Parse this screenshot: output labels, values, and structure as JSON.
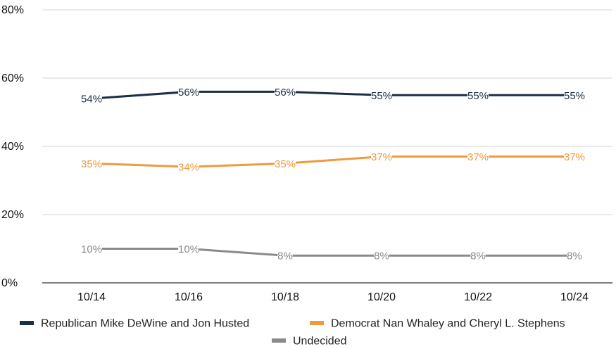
{
  "chart_data": {
    "type": "line",
    "categories": [
      "10/14",
      "10/16",
      "10/18",
      "10/20",
      "10/22",
      "10/24"
    ],
    "ylim": [
      0,
      80
    ],
    "yticks": [
      0,
      20,
      40,
      60,
      80
    ],
    "ytick_labels": [
      "0%",
      "20%",
      "40%",
      "60%",
      "80%"
    ],
    "grid": true,
    "legend": "bottom",
    "series": [
      {
        "name": "Republican Mike DeWine and Jon Husted",
        "color": "#1b2f46",
        "values": [
          54,
          56,
          56,
          55,
          55,
          55
        ],
        "labels": [
          "54%",
          "56%",
          "56%",
          "55%",
          "55%",
          "55%"
        ]
      },
      {
        "name": "Democrat Nan Whaley and Cheryl L. Stephens",
        "color": "#ef9a3c",
        "values": [
          35,
          34,
          35,
          37,
          37,
          37
        ],
        "labels": [
          "35%",
          "34%",
          "35%",
          "37%",
          "37%",
          "37%"
        ]
      },
      {
        "name": "Undecided",
        "color": "#8a8a8a",
        "values": [
          10,
          10,
          8,
          8,
          8,
          8
        ],
        "labels": [
          "10%",
          "10%",
          "8%",
          "8%",
          "8%",
          "8%"
        ]
      }
    ]
  }
}
